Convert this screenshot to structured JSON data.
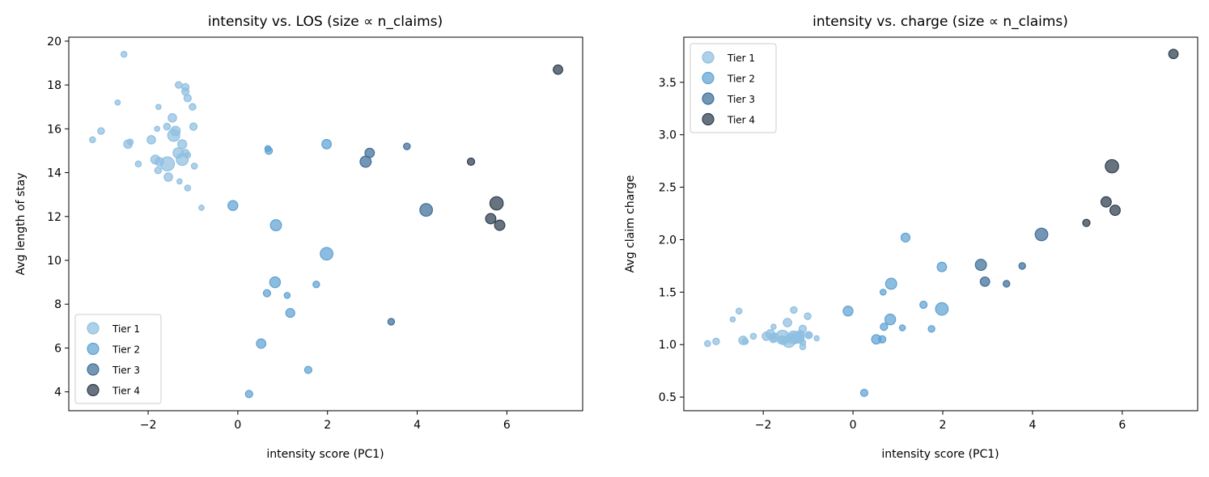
{
  "chart_data": [
    {
      "type": "scatter",
      "title": "intensity vs. LOS (size ∝ n_claims)",
      "xlabel": "intensity score (PC1)",
      "ylabel": "Avg length of stay",
      "xlim": [
        -3.77,
        7.69
      ],
      "ylim": [
        3.14,
        20.18
      ],
      "xticks": [
        -2,
        0,
        2,
        4,
        6
      ],
      "yticks": [
        4,
        6,
        8,
        10,
        12,
        14,
        16,
        18,
        20
      ],
      "grid": false,
      "legend": "lower-left",
      "series": [
        {
          "name": "Tier 1",
          "color": "#8fbfe0",
          "points": [
            [
              -2.54,
              19.4,
              20
            ],
            [
              -2.68,
              17.2,
              15
            ],
            [
              -1.77,
              17.0,
              15
            ],
            [
              -1.32,
              18.0,
              25
            ],
            [
              -1.17,
              17.9,
              30
            ],
            [
              -1.17,
              17.7,
              30
            ],
            [
              -1.12,
              17.4,
              30
            ],
            [
              -1.01,
              17.0,
              25
            ],
            [
              -0.99,
              16.1,
              30
            ],
            [
              -1.46,
              16.5,
              40
            ],
            [
              -1.58,
              16.1,
              25
            ],
            [
              -1.8,
              16.0,
              15
            ],
            [
              -1.39,
              15.9,
              50
            ],
            [
              -1.43,
              15.7,
              80
            ],
            [
              -3.05,
              15.9,
              25
            ],
            [
              -3.24,
              15.5,
              20
            ],
            [
              -2.45,
              15.3,
              40
            ],
            [
              -2.4,
              15.4,
              20
            ],
            [
              -1.93,
              15.5,
              40
            ],
            [
              -1.24,
              15.3,
              45
            ],
            [
              -1.33,
              14.9,
              60
            ],
            [
              -1.17,
              14.9,
              30
            ],
            [
              -1.12,
              14.8,
              20
            ],
            [
              -1.84,
              14.6,
              45
            ],
            [
              -1.75,
              14.5,
              40
            ],
            [
              -1.57,
              14.4,
              110
            ],
            [
              -1.24,
              14.6,
              80
            ],
            [
              -1.78,
              14.1,
              25
            ],
            [
              -1.55,
              13.8,
              40
            ],
            [
              -1.3,
              13.6,
              15
            ],
            [
              -1.12,
              13.3,
              20
            ],
            [
              -2.22,
              14.4,
              20
            ],
            [
              -0.97,
              14.3,
              20
            ],
            [
              -0.81,
              12.4,
              15
            ]
          ]
        },
        {
          "name": "Tier 2",
          "color": "#5fa2d2",
          "points": [
            [
              -0.11,
              12.5,
              55
            ],
            [
              0.67,
              15.1,
              20
            ],
            [
              0.69,
              15.0,
              30
            ],
            [
              1.98,
              15.3,
              50
            ],
            [
              0.85,
              11.6,
              70
            ],
            [
              1.98,
              10.3,
              90
            ],
            [
              0.83,
              9.0,
              65
            ],
            [
              0.65,
              8.5,
              30
            ],
            [
              1.1,
              8.4,
              20
            ],
            [
              1.75,
              8.9,
              25
            ],
            [
              1.17,
              7.6,
              45
            ],
            [
              0.52,
              6.2,
              50
            ],
            [
              1.57,
              5.0,
              30
            ],
            [
              0.25,
              3.9,
              30
            ]
          ]
        },
        {
          "name": "Tier 3",
          "color": "#3e6e99",
          "points": [
            [
              2.85,
              14.5,
              70
            ],
            [
              2.94,
              14.9,
              50
            ],
            [
              3.77,
              15.2,
              25
            ],
            [
              4.2,
              12.3,
              90
            ],
            [
              3.42,
              7.2,
              25
            ]
          ]
        },
        {
          "name": "Tier 4",
          "color": "#2d3e4f",
          "points": [
            [
              7.14,
              18.7,
              50
            ],
            [
              5.2,
              14.5,
              30
            ],
            [
              5.77,
              12.6,
              100
            ],
            [
              5.64,
              11.9,
              60
            ],
            [
              5.84,
              11.6,
              60
            ]
          ]
        }
      ]
    },
    {
      "type": "scatter",
      "title": "intensity vs. charge (size ∝ n_claims)",
      "xlabel": "intensity score (PC1)",
      "ylabel": "Avg claim charge",
      "xlim": [
        -3.77,
        7.68
      ],
      "ylim": [
        0.37,
        3.93
      ],
      "xticks": [
        -2,
        0,
        2,
        4,
        6
      ],
      "yticks": [
        "0.5",
        "1.0",
        "1.5",
        "2.0",
        "2.5",
        "3.0",
        "3.5"
      ],
      "grid": false,
      "legend": "upper-left",
      "series": [
        {
          "name": "Tier 1",
          "color": "#8fbfe0",
          "points": [
            [
              -2.54,
              1.32,
              20
            ],
            [
              -2.68,
              1.24,
              15
            ],
            [
              -1.77,
              1.17,
              15
            ],
            [
              -1.32,
              1.33,
              25
            ],
            [
              -1.17,
              1.1,
              30
            ],
            [
              -1.17,
              1.08,
              30
            ],
            [
              -1.12,
              1.15,
              30
            ],
            [
              -1.01,
              1.27,
              25
            ],
            [
              -0.99,
              1.09,
              30
            ],
            [
              -1.46,
              1.21,
              40
            ],
            [
              -1.58,
              1.05,
              25
            ],
            [
              -1.8,
              1.08,
              15
            ],
            [
              -1.39,
              1.06,
              50
            ],
            [
              -1.43,
              1.03,
              80
            ],
            [
              -3.05,
              1.03,
              25
            ],
            [
              -3.24,
              1.01,
              20
            ],
            [
              -2.45,
              1.04,
              40
            ],
            [
              -2.4,
              1.03,
              20
            ],
            [
              -1.93,
              1.08,
              40
            ],
            [
              -1.24,
              1.06,
              45
            ],
            [
              -1.33,
              1.08,
              60
            ],
            [
              -1.17,
              1.05,
              30
            ],
            [
              -1.12,
              1.02,
              20
            ],
            [
              -1.84,
              1.1,
              45
            ],
            [
              -1.75,
              1.07,
              40
            ],
            [
              -1.57,
              1.07,
              110
            ],
            [
              -1.24,
              1.07,
              80
            ],
            [
              -1.78,
              1.05,
              25
            ],
            [
              -1.55,
              1.04,
              40
            ],
            [
              -1.3,
              1.03,
              15
            ],
            [
              -1.12,
              0.98,
              20
            ],
            [
              -2.22,
              1.08,
              20
            ],
            [
              -0.97,
              1.09,
              20
            ],
            [
              -0.81,
              1.06,
              15
            ]
          ]
        },
        {
          "name": "Tier 2",
          "color": "#5fa2d2",
          "points": [
            [
              -0.11,
              1.32,
              55
            ],
            [
              0.67,
              1.5,
              20
            ],
            [
              0.69,
              1.17,
              30
            ],
            [
              1.98,
              1.74,
              50
            ],
            [
              0.85,
              1.58,
              70
            ],
            [
              1.98,
              1.34,
              90
            ],
            [
              0.83,
              1.24,
              65
            ],
            [
              0.65,
              1.05,
              30
            ],
            [
              1.1,
              1.16,
              20
            ],
            [
              1.75,
              1.15,
              25
            ],
            [
              1.17,
              2.02,
              45
            ],
            [
              0.52,
              1.05,
              50
            ],
            [
              1.57,
              1.38,
              30
            ],
            [
              0.25,
              0.54,
              30
            ]
          ]
        },
        {
          "name": "Tier 3",
          "color": "#3e6e99",
          "points": [
            [
              2.85,
              1.76,
              70
            ],
            [
              2.94,
              1.6,
              50
            ],
            [
              3.77,
              1.75,
              25
            ],
            [
              4.2,
              2.05,
              90
            ],
            [
              3.42,
              1.58,
              25
            ]
          ]
        },
        {
          "name": "Tier 4",
          "color": "#2d3e4f",
          "points": [
            [
              7.14,
              3.77,
              50
            ],
            [
              5.2,
              2.16,
              30
            ],
            [
              5.77,
              2.7,
              100
            ],
            [
              5.64,
              2.36,
              60
            ],
            [
              5.84,
              2.28,
              60
            ]
          ]
        }
      ]
    }
  ]
}
